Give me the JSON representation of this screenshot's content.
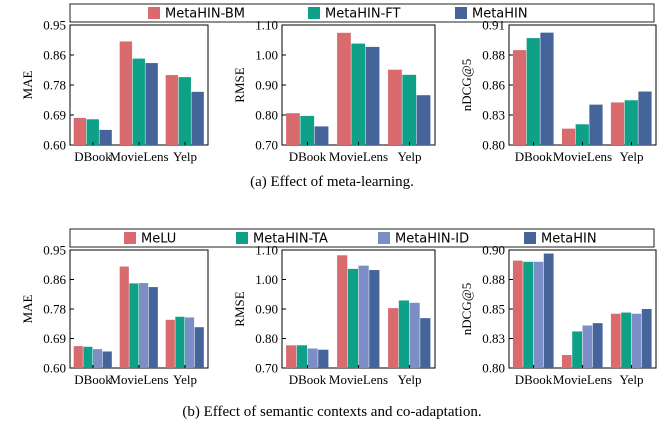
{
  "figure_a": {
    "caption": "(a)  Effect of meta-learning.",
    "legend": [
      {
        "label": "MetaHIN-BM",
        "color": "#d96b6e"
      },
      {
        "label": "MetaHIN-FT",
        "color": "#0fa187"
      },
      {
        "label": "MetaHIN",
        "color": "#44649a"
      }
    ]
  },
  "figure_b": {
    "caption": "(b)  Effect of semantic contexts and co-adaptation.",
    "legend": [
      {
        "label": "MeLU",
        "color": "#d96b6e"
      },
      {
        "label": "MetaHIN-TA",
        "color": "#0fa187"
      },
      {
        "label": "MetaHIN-ID",
        "color": "#7b8fc6"
      },
      {
        "label": "MetaHIN",
        "color": "#44649a"
      }
    ]
  },
  "chart_data": [
    {
      "type": "bar",
      "figure": "a",
      "categories": [
        "DBook",
        "MovieLens",
        "Yelp"
      ],
      "ylabel": "MAE",
      "ylim": [
        0.6,
        0.95
      ],
      "yticks": [
        "0.95",
        "0.86",
        "0.78",
        "0.69",
        "0.60"
      ],
      "yticks_values": [
        0.95,
        0.8625,
        0.775,
        0.6875,
        0.6
      ],
      "series": [
        {
          "name": "MetaHIN-BM",
          "color": "#d96b6e",
          "values": [
            0.679,
            0.902,
            0.804
          ]
        },
        {
          "name": "MetaHIN-FT",
          "color": "#0fa187",
          "values": [
            0.675,
            0.852,
            0.798
          ]
        },
        {
          "name": "MetaHIN",
          "color": "#44649a",
          "values": [
            0.644,
            0.839,
            0.755
          ]
        }
      ]
    },
    {
      "type": "bar",
      "figure": "a",
      "categories": [
        "DBook",
        "MovieLens",
        "Yelp"
      ],
      "ylabel": "RMSE",
      "ylim": [
        0.7,
        1.1
      ],
      "yticks": [
        "1.10",
        "1.00",
        "0.90",
        "0.80",
        "0.70"
      ],
      "yticks_values": [
        1.1,
        1.0,
        0.9,
        0.8,
        0.7
      ],
      "series": [
        {
          "name": "MetaHIN-BM",
          "color": "#d96b6e",
          "values": [
            0.806,
            1.074,
            0.951
          ]
        },
        {
          "name": "MetaHIN-FT",
          "color": "#0fa187",
          "values": [
            0.797,
            1.038,
            0.934
          ]
        },
        {
          "name": "MetaHIN",
          "color": "#44649a",
          "values": [
            0.762,
            1.027,
            0.866
          ]
        }
      ]
    },
    {
      "type": "bar",
      "figure": "a",
      "categories": [
        "DBook",
        "MovieLens",
        "Yelp"
      ],
      "ylabel": "nDCG@5",
      "ylim": [
        0.8,
        0.91
      ],
      "yticks": [
        "0.91",
        "0.88",
        "0.86",
        "0.83",
        "0.80"
      ],
      "yticks_values": [
        0.91,
        0.8825,
        0.855,
        0.8275,
        0.8
      ],
      "series": [
        {
          "name": "MetaHIN-BM",
          "color": "#d96b6e",
          "values": [
            0.887,
            0.815,
            0.839
          ]
        },
        {
          "name": "MetaHIN-FT",
          "color": "#0fa187",
          "values": [
            0.898,
            0.819,
            0.841
          ]
        },
        {
          "name": "MetaHIN",
          "color": "#44649a",
          "values": [
            0.903,
            0.837,
            0.849
          ]
        }
      ]
    },
    {
      "type": "bar",
      "figure": "b",
      "categories": [
        "DBook",
        "MovieLens",
        "Yelp"
      ],
      "ylabel": "MAE",
      "ylim": [
        0.6,
        0.95
      ],
      "yticks": [
        "0.95",
        "0.86",
        "0.78",
        "0.69",
        "0.60"
      ],
      "yticks_values": [
        0.95,
        0.8625,
        0.775,
        0.6875,
        0.6
      ],
      "series": [
        {
          "name": "MeLU",
          "color": "#d96b6e",
          "values": [
            0.665,
            0.901,
            0.743
          ]
        },
        {
          "name": "MetaHIN-TA",
          "color": "#0fa187",
          "values": [
            0.663,
            0.851,
            0.752
          ]
        },
        {
          "name": "MetaHIN-ID",
          "color": "#7b8fc6",
          "values": [
            0.656,
            0.852,
            0.75
          ]
        },
        {
          "name": "MetaHIN",
          "color": "#44649a",
          "values": [
            0.649,
            0.84,
            0.721
          ]
        }
      ]
    },
    {
      "type": "bar",
      "figure": "b",
      "categories": [
        "DBook",
        "MovieLens",
        "Yelp"
      ],
      "ylabel": "RMSE",
      "ylim": [
        0.7,
        1.1
      ],
      "yticks": [
        "1.10",
        "1.00",
        "0.90",
        "0.80",
        "0.70"
      ],
      "yticks_values": [
        1.1,
        1.0,
        0.9,
        0.8,
        0.7
      ],
      "series": [
        {
          "name": "MeLU",
          "color": "#d96b6e",
          "values": [
            0.777,
            1.082,
            0.903
          ]
        },
        {
          "name": "MetaHIN-TA",
          "color": "#0fa187",
          "values": [
            0.777,
            1.036,
            0.929
          ]
        },
        {
          "name": "MetaHIN-ID",
          "color": "#7b8fc6",
          "values": [
            0.766,
            1.047,
            0.921
          ]
        },
        {
          "name": "MetaHIN",
          "color": "#44649a",
          "values": [
            0.762,
            1.032,
            0.869
          ]
        }
      ]
    },
    {
      "type": "bar",
      "figure": "b",
      "categories": [
        "DBook",
        "MovieLens",
        "Yelp"
      ],
      "ylabel": "nDCG@5",
      "ylim": [
        0.8,
        0.9
      ],
      "yticks": [
        "0.90",
        "0.88",
        "0.85",
        "0.83",
        "0.80"
      ],
      "yticks_values": [
        0.9,
        0.875,
        0.85,
        0.825,
        0.8
      ],
      "series": [
        {
          "name": "MeLU",
          "color": "#d96b6e",
          "values": [
            0.891,
            0.811,
            0.846
          ]
        },
        {
          "name": "MetaHIN-TA",
          "color": "#0fa187",
          "values": [
            0.89,
            0.831,
            0.847
          ]
        },
        {
          "name": "MetaHIN-ID",
          "color": "#7b8fc6",
          "values": [
            0.89,
            0.836,
            0.846
          ]
        },
        {
          "name": "MetaHIN",
          "color": "#44649a",
          "values": [
            0.897,
            0.838,
            0.85
          ]
        }
      ]
    }
  ]
}
